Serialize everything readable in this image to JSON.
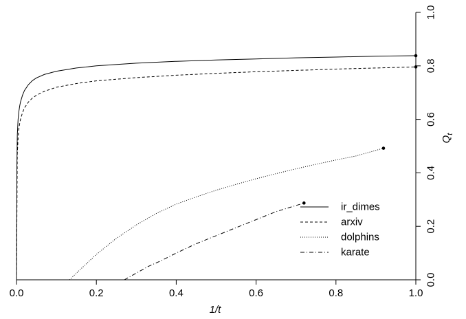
{
  "chart_data": {
    "type": "line",
    "title": "",
    "xlabel": "1/t",
    "ylabel": "Q",
    "ylabel_subscript": "t",
    "xlim": [
      0,
      1
    ],
    "ylim": [
      0,
      1
    ],
    "x_ticks": [
      0.0,
      0.2,
      0.4,
      0.6,
      0.8,
      1.0
    ],
    "x_tick_labels": [
      "0.0",
      "0.2",
      "0.4",
      "0.6",
      "0.8",
      "1.0"
    ],
    "y_ticks": [
      0.0,
      0.2,
      0.4,
      0.6,
      0.8,
      1.0
    ],
    "y_tick_labels": [
      "0.0",
      "0.2",
      "0.4",
      "0.6",
      "0.8",
      "1.0"
    ],
    "y_axis_side": "right",
    "grid": false,
    "legend_position": "lower-right",
    "series": [
      {
        "name": "ir_dimes",
        "line_style": "solid",
        "endpoint": [
          1.0,
          0.838
        ],
        "x": [
          0.0,
          0.001,
          0.002,
          0.004,
          0.006,
          0.008,
          0.01,
          0.015,
          0.02,
          0.03,
          0.04,
          0.05,
          0.07,
          0.1,
          0.15,
          0.2,
          0.3,
          0.4,
          0.5,
          0.6,
          0.7,
          0.8,
          0.9,
          1.0
        ],
        "y": [
          0.0,
          0.43,
          0.54,
          0.6,
          0.63,
          0.65,
          0.665,
          0.69,
          0.708,
          0.73,
          0.745,
          0.755,
          0.768,
          0.78,
          0.792,
          0.8,
          0.81,
          0.817,
          0.822,
          0.826,
          0.83,
          0.833,
          0.836,
          0.838
        ]
      },
      {
        "name": "arxiv",
        "line_style": "dashed",
        "endpoint": [
          1.0,
          0.796
        ],
        "x": [
          0.0,
          0.002,
          0.004,
          0.006,
          0.008,
          0.01,
          0.015,
          0.02,
          0.03,
          0.04,
          0.05,
          0.07,
          0.1,
          0.15,
          0.2,
          0.3,
          0.4,
          0.5,
          0.6,
          0.7,
          0.8,
          0.9,
          1.0
        ],
        "y": [
          0.0,
          0.47,
          0.53,
          0.565,
          0.585,
          0.6,
          0.625,
          0.643,
          0.665,
          0.68,
          0.69,
          0.705,
          0.72,
          0.734,
          0.744,
          0.756,
          0.765,
          0.772,
          0.778,
          0.783,
          0.788,
          0.792,
          0.796
        ]
      },
      {
        "name": "dolphins",
        "line_style": "dotted",
        "endpoint": [
          0.919,
          0.492
        ],
        "x": [
          0.133,
          0.15,
          0.2,
          0.25,
          0.3,
          0.35,
          0.4,
          0.45,
          0.5,
          0.55,
          0.6,
          0.65,
          0.7,
          0.75,
          0.8,
          0.85,
          0.919
        ],
        "y": [
          0.0,
          0.025,
          0.095,
          0.155,
          0.205,
          0.248,
          0.283,
          0.31,
          0.335,
          0.357,
          0.378,
          0.397,
          0.415,
          0.432,
          0.448,
          0.463,
          0.492
        ]
      },
      {
        "name": "karate",
        "line_style": "dashdot",
        "endpoint": [
          0.72,
          0.287
        ],
        "x": [
          0.27,
          0.3,
          0.33,
          0.36,
          0.4,
          0.45,
          0.5,
          0.55,
          0.6,
          0.65,
          0.72
        ],
        "y": [
          0.0,
          0.025,
          0.05,
          0.07,
          0.1,
          0.135,
          0.165,
          0.195,
          0.225,
          0.255,
          0.287
        ]
      }
    ]
  }
}
